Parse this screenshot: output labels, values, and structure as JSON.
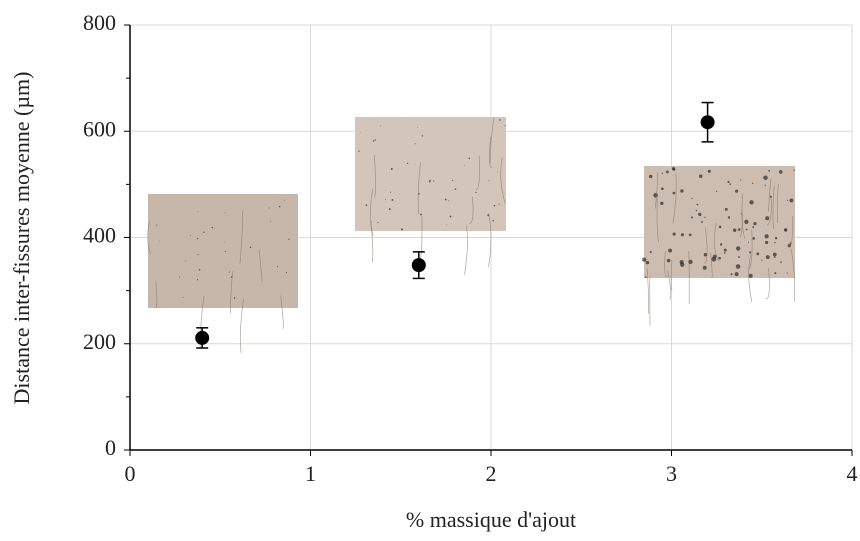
{
  "chart_data": {
    "type": "scatter",
    "x_label": "% massique d'ajout",
    "y_label": "Distance inter-fissures moyenne (µm)",
    "x": [
      0.4,
      1.6,
      3.2
    ],
    "series": [
      {
        "color": "#000000",
        "values": [
          211,
          348,
          617
        ],
        "errors": [
          19,
          25,
          37
        ]
      }
    ],
    "xlim": [
      0,
      4
    ],
    "ylim": [
      0,
      800
    ],
    "xticks": [
      0,
      1,
      2,
      3,
      4
    ],
    "yticks": [
      0,
      200,
      400,
      600,
      800
    ],
    "yminorticks": [
      100,
      300,
      500,
      700
    ],
    "grid": true
  }
}
